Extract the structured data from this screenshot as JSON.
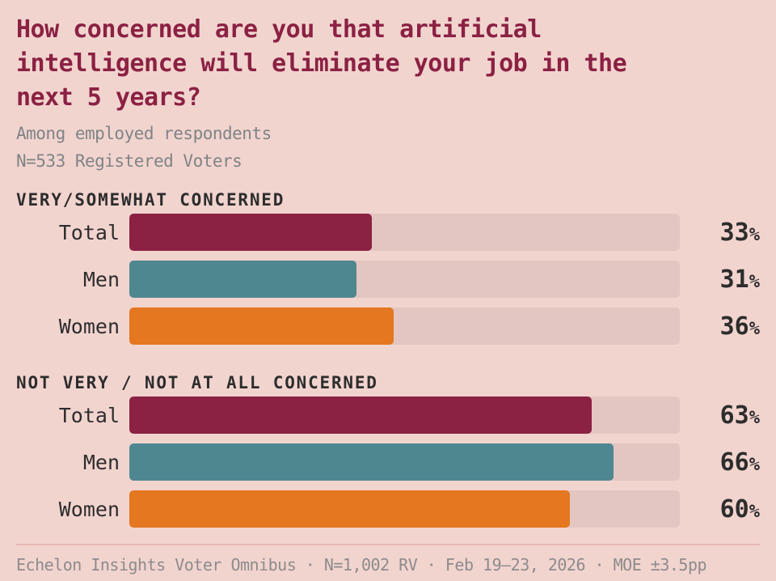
{
  "colors": {
    "background": "#f2d4cf",
    "bar_track": "#e3c6c1",
    "title_text": "#8b2143",
    "dark_text": "#2d2d2d",
    "muted_text": "#7f8486",
    "footer_text": "#8d8b8c",
    "divider": "#e8bab4",
    "total_bar": "#8b2143",
    "men_bar": "#4f8791",
    "women_bar": "#e4771f"
  },
  "header": {
    "title": "How concerned are you that artificial intelligence will eliminate your job in the next 5 years?",
    "subtitle_line1": "Among employed respondents",
    "subtitle_line2": "N=533 Registered Voters"
  },
  "chart_data": {
    "type": "bar",
    "orientation": "horizontal",
    "title": "How concerned are you that artificial intelligence will eliminate your job in the next 5 years?",
    "subtitle": [
      "Among employed respondents",
      "N=533 Registered Voters"
    ],
    "unit": "%",
    "xlim": [
      0,
      75
    ],
    "grid": false,
    "legend": "none",
    "categories": [
      "Total",
      "Men",
      "Women"
    ],
    "groups": [
      {
        "label": "VERY/SOMEWHAT CONCERNED",
        "rows": [
          {
            "category": "Total",
            "value": 33,
            "display": "33%",
            "color": "#8b2143"
          },
          {
            "category": "Men",
            "value": 31,
            "display": "31%",
            "color": "#4f8791"
          },
          {
            "category": "Women",
            "value": 36,
            "display": "36%",
            "color": "#e4771f"
          }
        ]
      },
      {
        "label": "NOT VERY / NOT AT ALL CONCERNED",
        "rows": [
          {
            "category": "Total",
            "value": 63,
            "display": "63%",
            "color": "#8b2143"
          },
          {
            "category": "Men",
            "value": 66,
            "display": "66%",
            "color": "#4f8791"
          },
          {
            "category": "Women",
            "value": 60,
            "display": "60%",
            "color": "#e4771f"
          }
        ]
      }
    ]
  },
  "footer": {
    "source": "Echelon Insights Voter Omnibus · N=1,002 RV · Feb 19–23, 2026 · MOE ±3.5pp"
  }
}
